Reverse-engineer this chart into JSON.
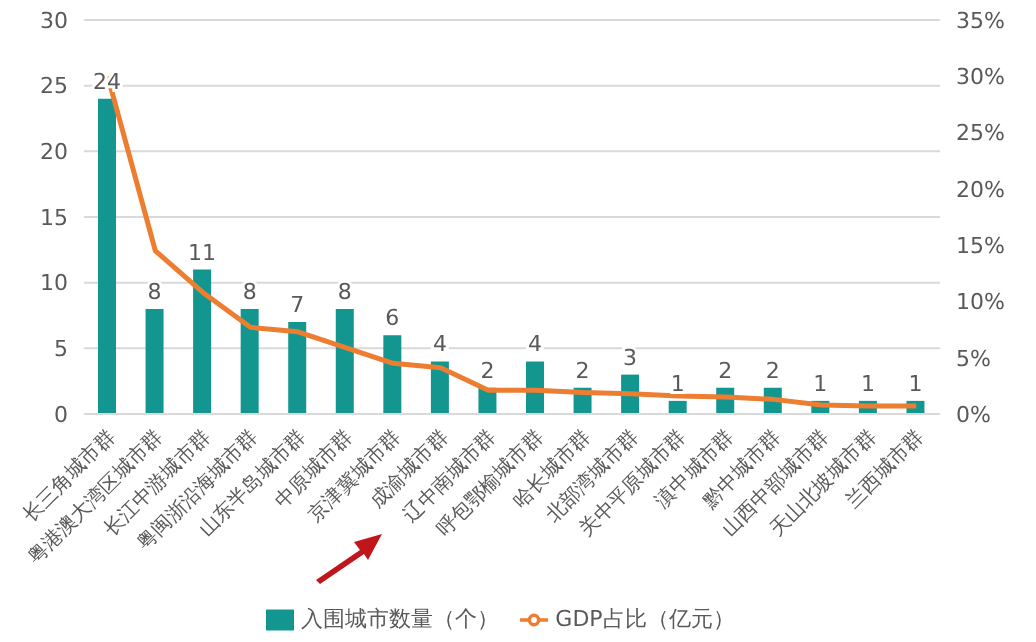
{
  "chart_data": {
    "type": "bar",
    "categories": [
      "长三角城市群",
      "粤港澳大湾区城市群",
      "长江中游城市群",
      "粤闽浙沿海城市群",
      "山东半岛城市群",
      "中原城市群",
      "京津冀城市群",
      "成渝城市群",
      "辽中南城市群",
      "呼包鄂榆城市群",
      "哈长城市群",
      "北部湾城市群",
      "关中平原城市群",
      "滇中城市群",
      "黔中城市群",
      "山西中部城市群",
      "天山北坡城市群",
      "兰西城市群"
    ],
    "series": [
      {
        "name": "入围城市数量（个）",
        "color": "#13968f",
        "values": [
          24,
          8,
          11,
          8,
          7,
          8,
          6,
          4,
          2,
          4,
          2,
          3,
          1,
          2,
          2,
          1,
          1,
          1
        ],
        "value_labels": [
          "24",
          "8",
          "11",
          "8",
          "7",
          "8",
          "6",
          "4",
          "2",
          "4",
          "2",
          "3",
          "1",
          "2",
          "2",
          "1",
          "1",
          "1"
        ]
      },
      {
        "name": "GDP占比（亿元）",
        "type": "line",
        "axis": "y2",
        "color": "#ed7d31",
        "values": [
          30,
          14.5,
          10.8,
          7.7,
          7.3,
          5.9,
          4.5,
          4.1,
          2.1,
          2.1,
          1.9,
          1.8,
          1.6,
          1.5,
          1.3,
          0.8,
          0.7,
          0.7
        ]
      }
    ],
    "ylim": [
      0,
      30
    ],
    "yticks": [
      0,
      5,
      10,
      15,
      20,
      25,
      30
    ],
    "y2lim": [
      0,
      35
    ],
    "y2ticks": [
      {
        "value": 0,
        "label": "0%"
      },
      {
        "value": 5,
        "label": "5%"
      },
      {
        "value": 10,
        "label": "10%"
      },
      {
        "value": 15,
        "label": "15%"
      },
      {
        "value": 20,
        "label": "20%"
      },
      {
        "value": 25,
        "label": "25%"
      },
      {
        "value": 30,
        "label": "30%"
      },
      {
        "value": 35,
        "label": "35%"
      }
    ],
    "grid": "y",
    "legend": "bottom",
    "marker": "none",
    "line_style": "solid"
  }
}
